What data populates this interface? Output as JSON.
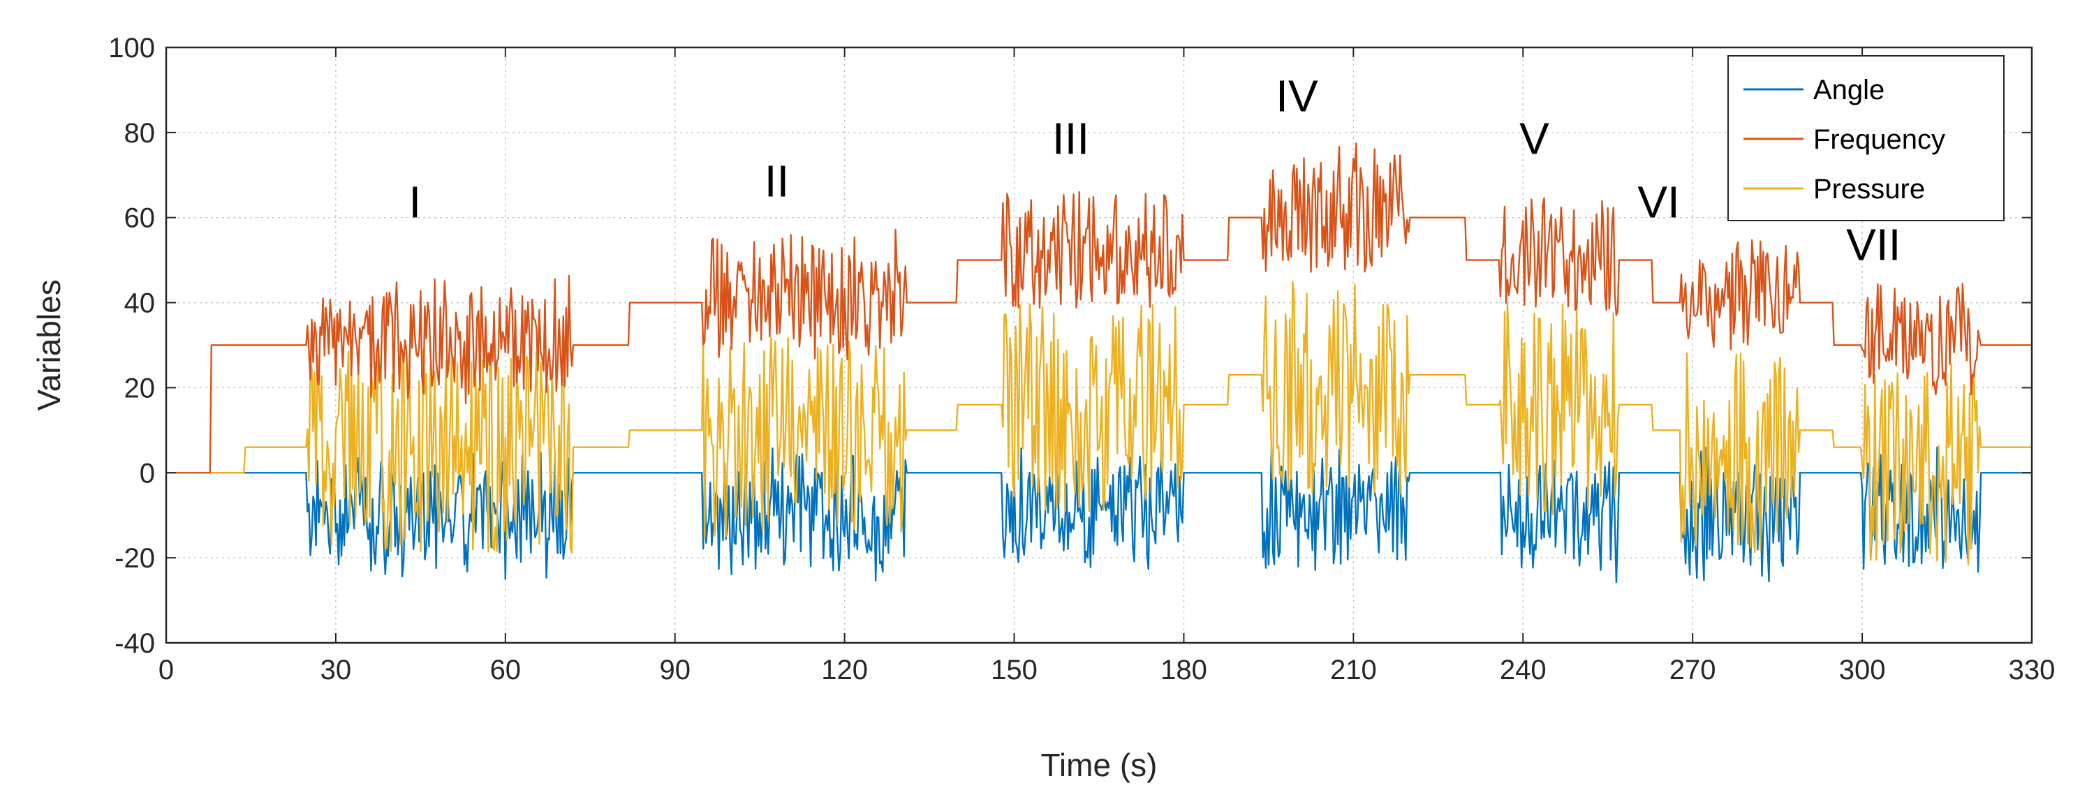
{
  "chart_data": {
    "type": "line",
    "title": "",
    "xlabel": "Time (s)",
    "ylabel": "Variables",
    "xlim": [
      0,
      330
    ],
    "ylim": [
      -40,
      100
    ],
    "xticks": [
      0,
      30,
      60,
      90,
      120,
      150,
      180,
      210,
      240,
      270,
      300,
      330
    ],
    "yticks": [
      -40,
      -20,
      0,
      20,
      40,
      60,
      80,
      100
    ],
    "grid": true,
    "legend_position": "top-right",
    "colors": {
      "angle": "#0072BD",
      "frequency": "#D95319",
      "pressure": "#EDB120",
      "axis": "#262626"
    },
    "series": [
      {
        "name": "Angle",
        "key": "angle",
        "description": "0 at rest; oscillates about -10 during each active phase"
      },
      {
        "name": "Frequency",
        "key": "frequency",
        "description": "Stepped baseline with bursts during phases"
      },
      {
        "name": "Pressure",
        "key": "pressure",
        "description": "Stepped baseline with bursts during phases"
      }
    ],
    "baseline_steps": [
      {
        "t0": 0,
        "t1": 8,
        "frequency": 0,
        "pressure": 0
      },
      {
        "t0": 8,
        "t1": 14,
        "frequency": 30,
        "pressure": 0
      },
      {
        "t0": 14,
        "t1": 25,
        "frequency": 30,
        "pressure": 6
      },
      {
        "t0": 72,
        "t1": 82,
        "frequency": 30,
        "pressure": 6
      },
      {
        "t0": 82,
        "t1": 95,
        "frequency": 40,
        "pressure": 10
      },
      {
        "t0": 131,
        "t1": 140,
        "frequency": 40,
        "pressure": 10
      },
      {
        "t0": 140,
        "t1": 148,
        "frequency": 50,
        "pressure": 16
      },
      {
        "t0": 180,
        "t1": 188,
        "frequency": 50,
        "pressure": 16
      },
      {
        "t0": 188,
        "t1": 194,
        "frequency": 60,
        "pressure": 23
      },
      {
        "t0": 220,
        "t1": 230,
        "frequency": 60,
        "pressure": 23
      },
      {
        "t0": 230,
        "t1": 236,
        "frequency": 50,
        "pressure": 16
      },
      {
        "t0": 257,
        "t1": 263,
        "frequency": 50,
        "pressure": 16
      },
      {
        "t0": 263,
        "t1": 268,
        "frequency": 40,
        "pressure": 10
      },
      {
        "t0": 289,
        "t1": 295,
        "frequency": 40,
        "pressure": 10
      },
      {
        "t0": 295,
        "t1": 300,
        "frequency": 30,
        "pressure": 6
      },
      {
        "t0": 321,
        "t1": 330,
        "frequency": 30,
        "pressure": 6
      }
    ],
    "phases": [
      {
        "label": "I",
        "t0": 25,
        "t1": 72,
        "label_x": 44,
        "label_y": 60,
        "freq_mean": 32,
        "freq_amp": 14,
        "press_mean": 5,
        "press_amp": 24,
        "angle_mean": -10,
        "angle_amp": 14
      },
      {
        "label": "II",
        "t0": 95,
        "t1": 131,
        "label_x": 108,
        "label_y": 65,
        "freq_mean": 42,
        "freq_amp": 14,
        "press_mean": 8,
        "press_amp": 24,
        "angle_mean": -10,
        "angle_amp": 14
      },
      {
        "label": "III",
        "t0": 148,
        "t1": 180,
        "label_x": 160,
        "label_y": 75,
        "freq_mean": 52,
        "freq_amp": 14,
        "press_mean": 15,
        "press_amp": 25,
        "angle_mean": -9,
        "angle_amp": 14
      },
      {
        "label": "IV",
        "t0": 194,
        "t1": 220,
        "label_x": 200,
        "label_y": 85,
        "freq_mean": 62,
        "freq_amp": 14,
        "press_mean": 20,
        "press_amp": 25,
        "angle_mean": -9,
        "angle_amp": 14
      },
      {
        "label": "V",
        "t0": 236,
        "t1": 257,
        "label_x": 242,
        "label_y": 75,
        "freq_mean": 52,
        "freq_amp": 14,
        "press_mean": 15,
        "press_amp": 25,
        "angle_mean": -9,
        "angle_amp": 14
      },
      {
        "label": "VI",
        "t0": 268,
        "t1": 289,
        "label_x": 264,
        "label_y": 60,
        "freq_mean": 42,
        "freq_amp": 12,
        "press_mean": 5,
        "press_amp": 24,
        "angle_mean": -10,
        "angle_amp": 14
      },
      {
        "label": "VII",
        "t0": 300,
        "t1": 321,
        "label_x": 302,
        "label_y": 50,
        "freq_mean": 32,
        "freq_amp": 12,
        "press_mean": 2,
        "press_amp": 24,
        "angle_mean": -10,
        "angle_amp": 14
      }
    ]
  }
}
